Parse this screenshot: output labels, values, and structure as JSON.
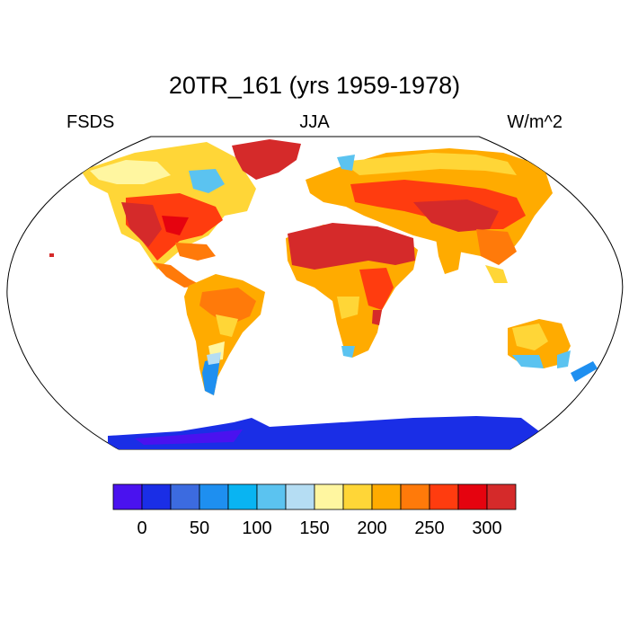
{
  "plot": {
    "title": "20TR_161 (yrs 1959-1978)",
    "left_label": "FSDS",
    "center_label": "JJA",
    "right_label": "W/m^2"
  },
  "colorbar": {
    "colors": [
      "#4a12ef",
      "#1a2ee6",
      "#3c6be0",
      "#1e8ff0",
      "#09b4f2",
      "#5bc3f0",
      "#b5ddf3",
      "#fff6a0",
      "#ffd637",
      "#ffab00",
      "#ff7a0a",
      "#ff3c0f",
      "#e5030f",
      "#d52a2a"
    ],
    "tick_labels": [
      "0",
      "50",
      "100",
      "150",
      "200",
      "250",
      "300"
    ]
  },
  "regions": {
    "antarctica": "#1a2ee6",
    "sahara_arabia": "#d52a2a",
    "us_southwest": "#d52a2a",
    "greenland": "#d52a2a",
    "tibet": "#e5030f",
    "amazon": "#ff7a0a",
    "australia_interior": "#ffd637",
    "southern_chile": "#1e8ff0"
  }
}
